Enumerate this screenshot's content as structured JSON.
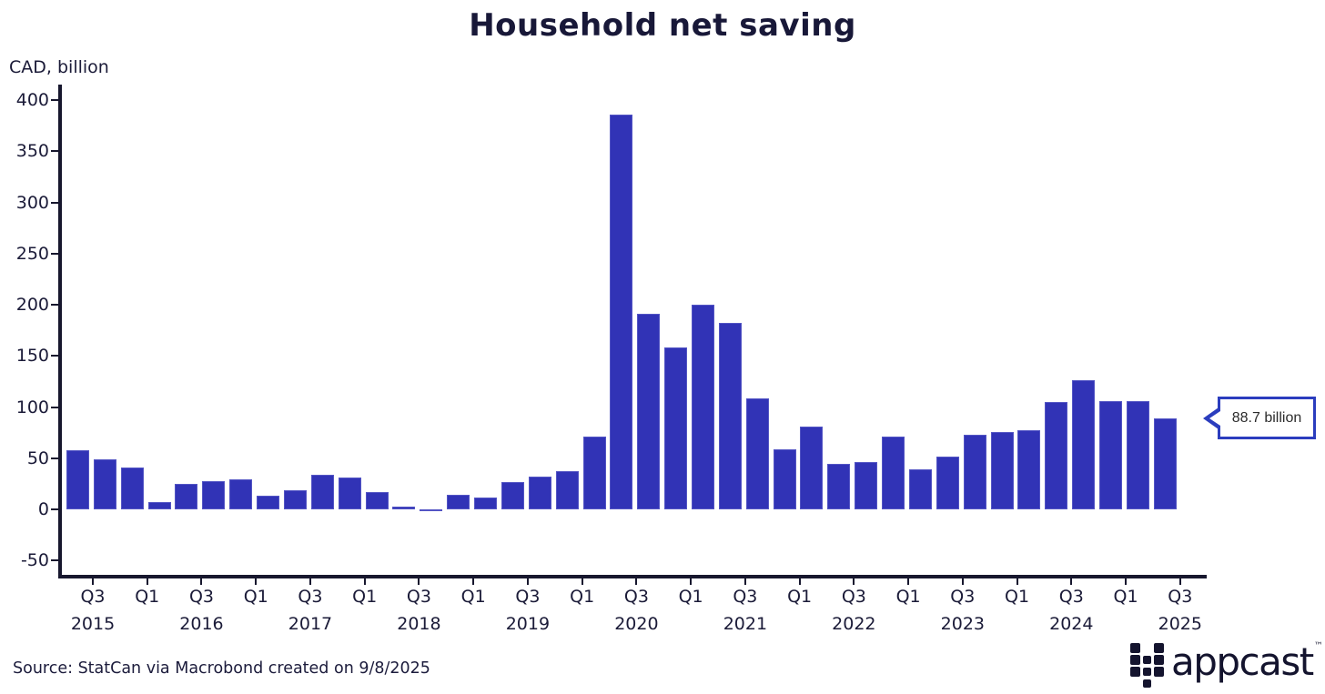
{
  "chart_data": {
    "type": "bar",
    "title": "Household net saving",
    "ylabel": "CAD, billion",
    "xlabel": "",
    "ylim": [
      -50,
      400
    ],
    "y_ticks": [
      400,
      350,
      300,
      250,
      200,
      150,
      100,
      50,
      0,
      -50
    ],
    "grid": false,
    "legend": "none",
    "bar_color": "#3133b6",
    "categories": [
      "Q3 2015",
      "Q4 2015",
      "Q1 2016",
      "Q2 2016",
      "Q3 2016",
      "Q4 2016",
      "Q1 2017",
      "Q2 2017",
      "Q3 2017",
      "Q4 2017",
      "Q1 2018",
      "Q2 2018",
      "Q3 2018",
      "Q4 2018",
      "Q1 2019",
      "Q2 2019",
      "Q3 2019",
      "Q4 2019",
      "Q1 2020",
      "Q2 2020",
      "Q3 2020",
      "Q4 2020",
      "Q1 2021",
      "Q2 2021",
      "Q3 2021",
      "Q4 2021",
      "Q1 2022",
      "Q2 2022",
      "Q3 2022",
      "Q4 2022",
      "Q1 2023",
      "Q2 2023",
      "Q3 2023",
      "Q4 2023",
      "Q1 2024",
      "Q2 2024",
      "Q3 2024",
      "Q4 2024",
      "Q1 2025",
      "Q2 2025",
      "Q3 2025"
    ],
    "values": [
      58,
      48.5,
      41,
      7,
      25,
      28,
      29,
      13.5,
      18.5,
      34,
      31,
      17,
      2.5,
      -1.5,
      14.5,
      12,
      27,
      32,
      37,
      71,
      386,
      191,
      158,
      200,
      182,
      108.5,
      59,
      81,
      44.5,
      46.5,
      71.5,
      39,
      51.5,
      73,
      75.5,
      77,
      105,
      126,
      106,
      106,
      88.7
    ],
    "x_ticks": [
      {
        "quarter": "Q3",
        "year": "2015"
      },
      {
        "quarter": "Q1",
        "year": ""
      },
      {
        "quarter": "Q3",
        "year": "2016"
      },
      {
        "quarter": "Q1",
        "year": ""
      },
      {
        "quarter": "Q3",
        "year": "2017"
      },
      {
        "quarter": "Q1",
        "year": ""
      },
      {
        "quarter": "Q3",
        "year": "2018"
      },
      {
        "quarter": "Q1",
        "year": ""
      },
      {
        "quarter": "Q3",
        "year": "2019"
      },
      {
        "quarter": "Q1",
        "year": ""
      },
      {
        "quarter": "Q3",
        "year": "2020"
      },
      {
        "quarter": "Q1",
        "year": ""
      },
      {
        "quarter": "Q3",
        "year": "2021"
      },
      {
        "quarter": "Q1",
        "year": ""
      },
      {
        "quarter": "Q3",
        "year": "2022"
      },
      {
        "quarter": "Q1",
        "year": ""
      },
      {
        "quarter": "Q3",
        "year": "2023"
      },
      {
        "quarter": "Q1",
        "year": ""
      },
      {
        "quarter": "Q3",
        "year": "2024"
      },
      {
        "quarter": "Q1",
        "year": ""
      },
      {
        "quarter": "Q3",
        "year": "2025"
      }
    ],
    "annotation": {
      "text": "88.7 billion",
      "points_to": "Q3 2025"
    }
  },
  "footer": {
    "source": "Source: StatCan via Macrobond created on 9/8/2025",
    "logo_text": "appcast",
    "logo_tm": "™"
  }
}
